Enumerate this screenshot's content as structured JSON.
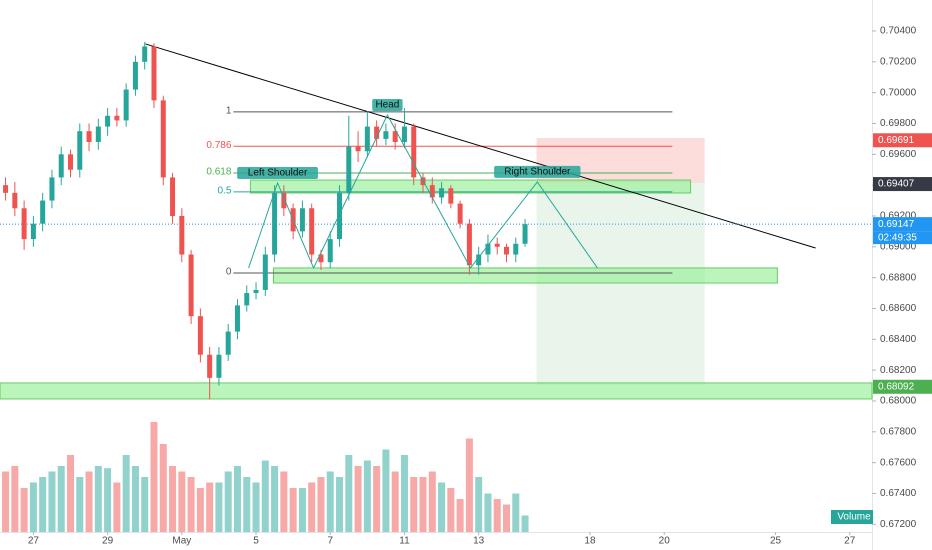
{
  "chart_data": {
    "type": "candlestick",
    "up_color": "#26a69a",
    "down_color": "#ef5350",
    "xlim": [
      -0.9,
      22.6
    ],
    "ylim": [
      0.6715,
      0.70601
    ],
    "xticks": [
      {
        "value": 0,
        "label": "27"
      },
      {
        "value": 2,
        "label": "29"
      },
      {
        "value": 4,
        "label": "May"
      },
      {
        "value": 6,
        "label": "5"
      },
      {
        "value": 8,
        "label": "7"
      },
      {
        "value": 10,
        "label": "11"
      },
      {
        "value": 12,
        "label": "13"
      },
      {
        "value": 15,
        "label": "18"
      },
      {
        "value": 17,
        "label": "20"
      },
      {
        "value": 20,
        "label": "25"
      },
      {
        "value": 22,
        "label": "27"
      }
    ],
    "yticks": [
      {
        "value": 0.704,
        "label": "0.70400"
      },
      {
        "value": 0.702,
        "label": "0.70200"
      },
      {
        "value": 0.7,
        "label": "0.70000"
      },
      {
        "value": 0.698,
        "label": "0.69800"
      },
      {
        "value": 0.696,
        "label": "0.69600"
      },
      {
        "value": 0.694,
        "label": "0.69400"
      },
      {
        "value": 0.692,
        "label": "0.69200"
      },
      {
        "value": 0.69,
        "label": "0.69000"
      },
      {
        "value": 0.688,
        "label": "0.68800"
      },
      {
        "value": 0.686,
        "label": "0.68600"
      },
      {
        "value": 0.684,
        "label": "0.68400"
      },
      {
        "value": 0.682,
        "label": "0.68200"
      },
      {
        "value": 0.68,
        "label": "0.68000"
      },
      {
        "value": 0.678,
        "label": "0.67800"
      },
      {
        "value": 0.676,
        "label": "0.67600"
      },
      {
        "value": 0.674,
        "label": "0.67400"
      },
      {
        "value": 0.672,
        "label": "0.67200"
      }
    ],
    "x": [
      -0.75,
      -0.5,
      -0.25,
      0,
      0.25,
      0.5,
      0.75,
      1,
      1.25,
      1.5,
      1.75,
      2,
      2.25,
      2.5,
      2.75,
      3,
      3.25,
      3.5,
      3.75,
      4,
      4.25,
      4.5,
      4.75,
      5,
      5.25,
      5.5,
      5.75,
      6,
      6.25,
      6.5,
      6.75,
      7,
      7.25,
      7.5,
      7.75,
      8,
      8.25,
      8.5,
      8.75,
      9,
      9.25,
      9.5,
      9.75,
      10,
      10.25,
      10.5,
      10.75,
      11,
      11.25,
      11.5,
      11.75,
      12,
      12.25,
      12.5,
      12.75,
      13,
      13.25
    ],
    "open": [
      0.694,
      0.6935,
      0.6925,
      0.6905,
      0.6915,
      0.693,
      0.6945,
      0.696,
      0.695,
      0.6975,
      0.6968,
      0.6978,
      0.6985,
      0.6982,
      0.7002,
      0.702,
      0.703,
      0.6995,
      0.6945,
      0.692,
      0.6895,
      0.6855,
      0.683,
      0.6815,
      0.683,
      0.6845,
      0.6862,
      0.687,
      0.6872,
      0.6895,
      0.6935,
      0.6925,
      0.691,
      0.6925,
      0.6895,
      0.689,
      0.6905,
      0.6935,
      0.6965,
      0.6962,
      0.6978,
      0.697,
      0.6975,
      0.6968,
      0.6978,
      0.6945,
      0.694,
      0.6932,
      0.6938,
      0.6928,
      0.6915,
      0.6888,
      0.6895,
      0.6902,
      0.69,
      0.6895,
      0.6902
    ],
    "high": [
      0.6945,
      0.6942,
      0.693,
      0.692,
      0.6935,
      0.695,
      0.6965,
      0.6963,
      0.698,
      0.698,
      0.6983,
      0.699,
      0.699,
      0.7006,
      0.7024,
      0.7033,
      0.7032,
      0.6998,
      0.6948,
      0.6925,
      0.6898,
      0.686,
      0.6835,
      0.6835,
      0.685,
      0.6866,
      0.6875,
      0.6877,
      0.69,
      0.694,
      0.694,
      0.6928,
      0.693,
      0.6928,
      0.6898,
      0.691,
      0.694,
      0.6985,
      0.6975,
      0.6988,
      0.6982,
      0.698,
      0.698,
      0.699,
      0.698,
      0.6948,
      0.6945,
      0.6942,
      0.694,
      0.693,
      0.6918,
      0.69,
      0.6908,
      0.6906,
      0.6902,
      0.6906,
      0.6918
    ],
    "low": [
      0.693,
      0.692,
      0.6898,
      0.69,
      0.691,
      0.6925,
      0.694,
      0.6945,
      0.6945,
      0.6962,
      0.6963,
      0.6972,
      0.6978,
      0.6978,
      0.6998,
      0.7015,
      0.699,
      0.694,
      0.6915,
      0.689,
      0.685,
      0.6825,
      0.6801,
      0.681,
      0.6826,
      0.684,
      0.6858,
      0.6866,
      0.6868,
      0.689,
      0.692,
      0.6905,
      0.6906,
      0.689,
      0.6885,
      0.6886,
      0.69,
      0.693,
      0.6955,
      0.6958,
      0.6965,
      0.6966,
      0.6963,
      0.6964,
      0.694,
      0.6935,
      0.6928,
      0.6928,
      0.6925,
      0.6912,
      0.6882,
      0.6882,
      0.689,
      0.6895,
      0.689,
      0.689,
      0.69
    ],
    "close": [
      0.6935,
      0.6925,
      0.6905,
      0.6915,
      0.693,
      0.6945,
      0.696,
      0.695,
      0.6975,
      0.6968,
      0.6978,
      0.6985,
      0.6982,
      0.7002,
      0.702,
      0.703,
      0.6995,
      0.6945,
      0.692,
      0.6895,
      0.6855,
      0.683,
      0.6815,
      0.683,
      0.6845,
      0.6862,
      0.687,
      0.6872,
      0.6895,
      0.6935,
      0.6925,
      0.691,
      0.6925,
      0.6895,
      0.689,
      0.6905,
      0.6935,
      0.6965,
      0.6962,
      0.6978,
      0.697,
      0.6975,
      0.6968,
      0.6978,
      0.6945,
      0.694,
      0.6932,
      0.6938,
      0.6928,
      0.6915,
      0.6888,
      0.6895,
      0.6902,
      0.69,
      0.6895,
      0.6902,
      0.69147
    ],
    "volume": [
      55,
      60,
      40,
      45,
      50,
      55,
      60,
      70,
      50,
      55,
      60,
      58,
      45,
      70,
      60,
      50,
      100,
      80,
      60,
      55,
      50,
      40,
      45,
      45,
      55,
      60,
      50,
      45,
      65,
      60,
      55,
      40,
      40,
      45,
      50,
      55,
      50,
      70,
      60,
      65,
      60,
      75,
      55,
      70,
      50,
      50,
      55,
      45,
      40,
      30,
      85,
      50,
      35,
      30,
      25,
      35,
      15
    ],
    "volume_label": "Volume",
    "current_price": {
      "value": 0.69147,
      "countdown": "02:49:35",
      "color": "#2196f3"
    },
    "price_tags": [
      {
        "value": 0.69691,
        "color": "#ef5350"
      },
      {
        "value": 0.69407,
        "color": "#363a45"
      },
      {
        "value": 0.68092,
        "color": "#4caf50"
      }
    ],
    "trendline": {
      "x": [
        3.02,
        21.08
      ],
      "y": [
        0.70316,
        0.68992
      ],
      "color": "#000000"
    },
    "fib": {
      "x": [
        5.39,
        17.22
      ],
      "levels": [
        {
          "level": 1,
          "price": 0.69875,
          "color": "#555555"
        },
        {
          "level": 0.786,
          "price": 0.69652,
          "color": "#ef5350"
        },
        {
          "level": 0.618,
          "price": 0.69479,
          "color": "#4caf50"
        },
        {
          "level": 0.5,
          "price": 0.69356,
          "color": "#26a69a"
        },
        {
          "level": 0,
          "price": 0.6883,
          "color": "#555555"
        }
      ]
    },
    "pattern": {
      "x": [
        5.8,
        6.58,
        7.55,
        9.54,
        11.78,
        13.58,
        15.2
      ],
      "y": [
        0.68863,
        0.69414,
        0.68863,
        0.69855,
        0.68863,
        0.69421,
        0.68863
      ],
      "color": "#26a69a",
      "labels": [
        {
          "text": "Left Shoulder",
          "x": 6.58,
          "y": 0.69414
        },
        {
          "text": "Head",
          "x": 9.54,
          "y": 0.69855
        },
        {
          "text": "Right Shoulder",
          "x": 13.58,
          "y": 0.69421
        }
      ]
    },
    "zones": [
      {
        "x": [
          5.85,
          17.71
        ],
        "y": [
          0.69433,
          0.69349
        ]
      },
      {
        "x": [
          6.47,
          20.05
        ],
        "y": [
          0.68863,
          0.68765
        ]
      },
      {
        "x": [
          -0.9,
          22.6
        ],
        "y": [
          0.68117,
          0.68013
        ]
      }
    ],
    "position": {
      "x": [
        13.56,
        18.09
      ],
      "stop": 0.69706,
      "entry": 0.69414,
      "target": 0.68104
    }
  }
}
